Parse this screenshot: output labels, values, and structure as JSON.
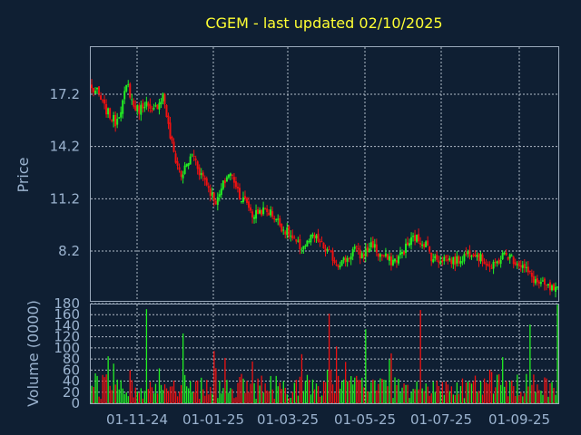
{
  "chart_data": [
    {
      "type": "candlestick",
      "title": "CGEM - last updated 02/10/2025",
      "ylabel": "Price",
      "yticks": [
        8.2,
        11.2,
        14.2,
        17.2
      ],
      "ylim": [
        5.5,
        19.5
      ],
      "xticks": [
        "01-11-24",
        "01-01-25",
        "01-03-25",
        "01-05-25",
        "01-07-25",
        "01-09-25"
      ],
      "grid": true,
      "up_color": "#22ee22",
      "down_color": "#ee1111",
      "price_path": [
        17.5,
        17.3,
        16.5,
        16.0,
        15.6,
        16.5,
        17.8,
        16.5,
        16.3,
        16.8,
        16.0,
        16.6,
        17.2,
        15.0,
        13.5,
        12.5,
        13.2,
        13.8,
        12.8,
        12.3,
        11.5,
        11.0,
        12.0,
        12.7,
        12.2,
        11.2,
        11.0,
        10.2,
        10.5,
        10.5,
        10.4,
        10.0,
        9.5,
        9.2,
        8.7,
        8.4,
        8.6,
        9.0,
        8.8,
        8.3,
        8.0,
        7.5,
        7.6,
        7.8,
        8.4,
        7.9,
        8.2,
        8.7,
        8.0,
        7.9,
        7.6,
        7.7,
        8.1,
        8.6,
        9.0,
        8.8,
        8.6,
        7.8,
        7.7,
        7.8,
        7.7,
        7.6,
        7.8,
        8.1,
        8.2,
        7.8,
        7.6,
        7.2,
        7.6,
        8.0,
        7.9,
        7.6,
        7.4,
        7.0,
        6.6,
        6.3,
        6.2,
        6.0,
        5.9
      ]
    },
    {
      "type": "bar",
      "ylabel": "Volume (0000)",
      "yticks": [
        0,
        20,
        40,
        60,
        80,
        100,
        120,
        140,
        160,
        180
      ],
      "ylim": [
        0,
        180
      ],
      "grid": true,
      "volume_seed": 7,
      "volume_spikes": [
        30,
        150,
        50,
        130,
        180,
        240,
        330,
        490,
        511
      ]
    }
  ]
}
